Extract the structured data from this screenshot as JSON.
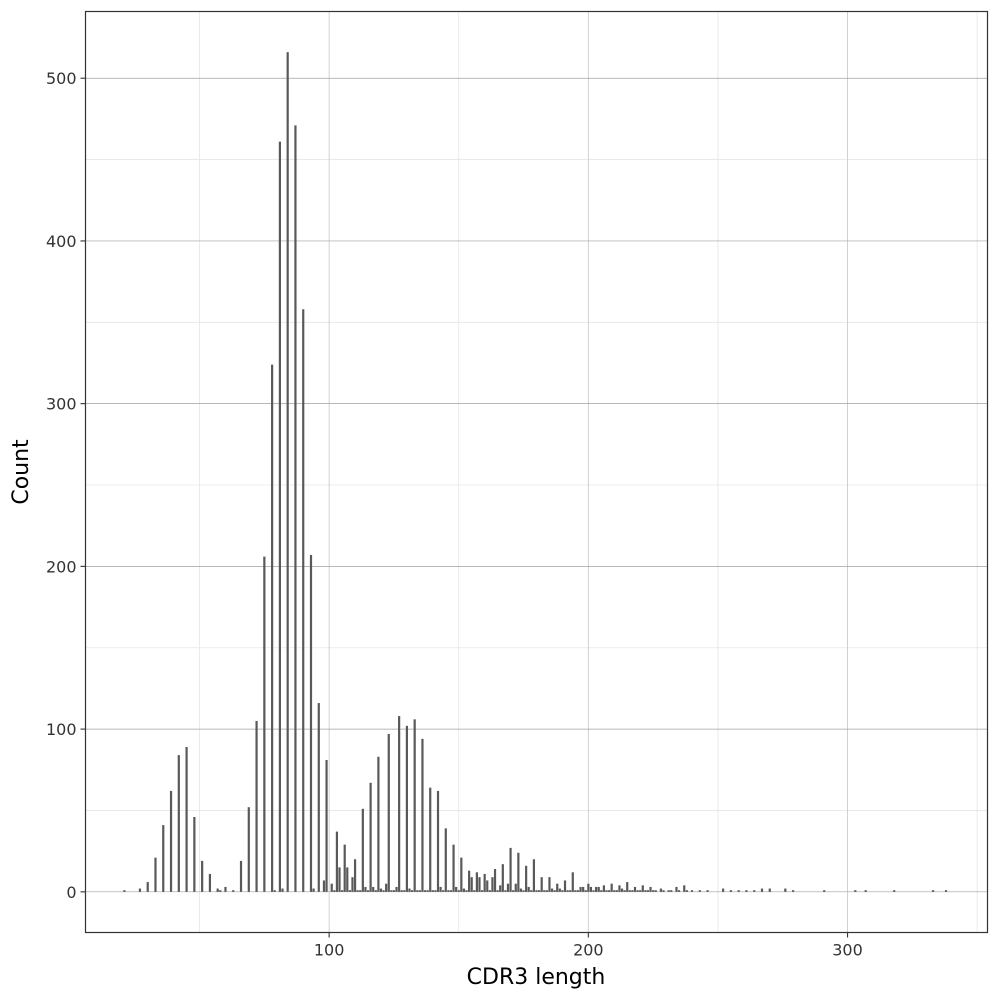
{
  "chart_data": {
    "type": "bar",
    "title": "",
    "xlabel": "CDR3 length",
    "ylabel": "Count",
    "xlim": [
      6,
      354
    ],
    "ylim": [
      -25,
      541
    ],
    "xticks": [
      100,
      200,
      300
    ],
    "yticks": [
      0,
      100,
      200,
      300,
      400,
      500
    ],
    "grid": true,
    "legend": "none",
    "bar_color": "#595959",
    "x": [
      21,
      27,
      30,
      33,
      36,
      39,
      42,
      45,
      48,
      51,
      54,
      57,
      58,
      60,
      63,
      66,
      69,
      72,
      75,
      78,
      79,
      81,
      82,
      84,
      87,
      90,
      93,
      94,
      96,
      98,
      99,
      101,
      102,
      103,
      104,
      105,
      106,
      107,
      108,
      109,
      110,
      111,
      112,
      113,
      114,
      115,
      116,
      117,
      118,
      119,
      120,
      121,
      122,
      123,
      124,
      125,
      126,
      127,
      128,
      129,
      130,
      131,
      132,
      133,
      134,
      135,
      136,
      137,
      138,
      139,
      140,
      141,
      142,
      143,
      144,
      145,
      146,
      147,
      148,
      149,
      150,
      151,
      152,
      153,
      154,
      155,
      156,
      157,
      158,
      159,
      160,
      161,
      162,
      163,
      164,
      165,
      166,
      167,
      168,
      169,
      170,
      171,
      172,
      173,
      174,
      175,
      176,
      177,
      178,
      179,
      180,
      181,
      182,
      183,
      184,
      185,
      186,
      187,
      188,
      189,
      190,
      191,
      192,
      193,
      194,
      195,
      196,
      197,
      198,
      199,
      200,
      201,
      202,
      203,
      204,
      205,
      206,
      207,
      208,
      209,
      210,
      211,
      212,
      213,
      214,
      215,
      216,
      217,
      218,
      219,
      220,
      221,
      222,
      223,
      224,
      225,
      226,
      228,
      229,
      231,
      232,
      234,
      235,
      237,
      238,
      240,
      243,
      246,
      252,
      255,
      258,
      261,
      264,
      267,
      270,
      276,
      279,
      291,
      303,
      307,
      318,
      333,
      338
    ],
    "values": [
      1,
      2,
      6,
      21,
      41,
      62,
      84,
      89,
      46,
      19,
      11,
      2,
      1,
      3,
      1,
      19,
      52,
      105,
      206,
      324,
      1,
      461,
      2,
      516,
      471,
      358,
      207,
      2,
      116,
      7,
      81,
      5,
      1,
      37,
      15,
      1,
      29,
      15,
      1,
      9,
      20,
      1,
      1,
      51,
      3,
      1,
      67,
      3,
      1,
      83,
      2,
      1,
      5,
      97,
      1,
      1,
      3,
      108,
      1,
      1,
      102,
      2,
      1,
      106,
      1,
      1,
      94,
      1,
      1,
      64,
      1,
      1,
      62,
      3,
      1,
      39,
      1,
      1,
      29,
      3,
      1,
      21,
      2,
      1,
      13,
      9,
      1,
      12,
      9,
      1,
      11,
      7,
      1,
      9,
      14,
      1,
      4,
      17,
      1,
      5,
      27,
      1,
      5,
      24,
      2,
      1,
      16,
      3,
      1,
      20,
      1,
      1,
      9,
      1,
      1,
      9,
      2,
      1,
      5,
      2,
      1,
      7,
      1,
      1,
      12,
      1,
      1,
      3,
      3,
      1,
      5,
      3,
      1,
      3,
      3,
      1,
      4,
      1,
      1,
      5,
      1,
      1,
      4,
      2,
      1,
      6,
      1,
      1,
      3,
      1,
      1,
      4,
      1,
      1,
      3,
      1,
      1,
      2,
      1,
      1,
      1,
      3,
      1,
      4,
      1,
      1,
      1,
      1,
      2,
      1,
      1,
      1,
      1,
      2,
      2,
      2,
      1,
      1,
      1,
      1,
      1,
      1,
      1
    ]
  }
}
